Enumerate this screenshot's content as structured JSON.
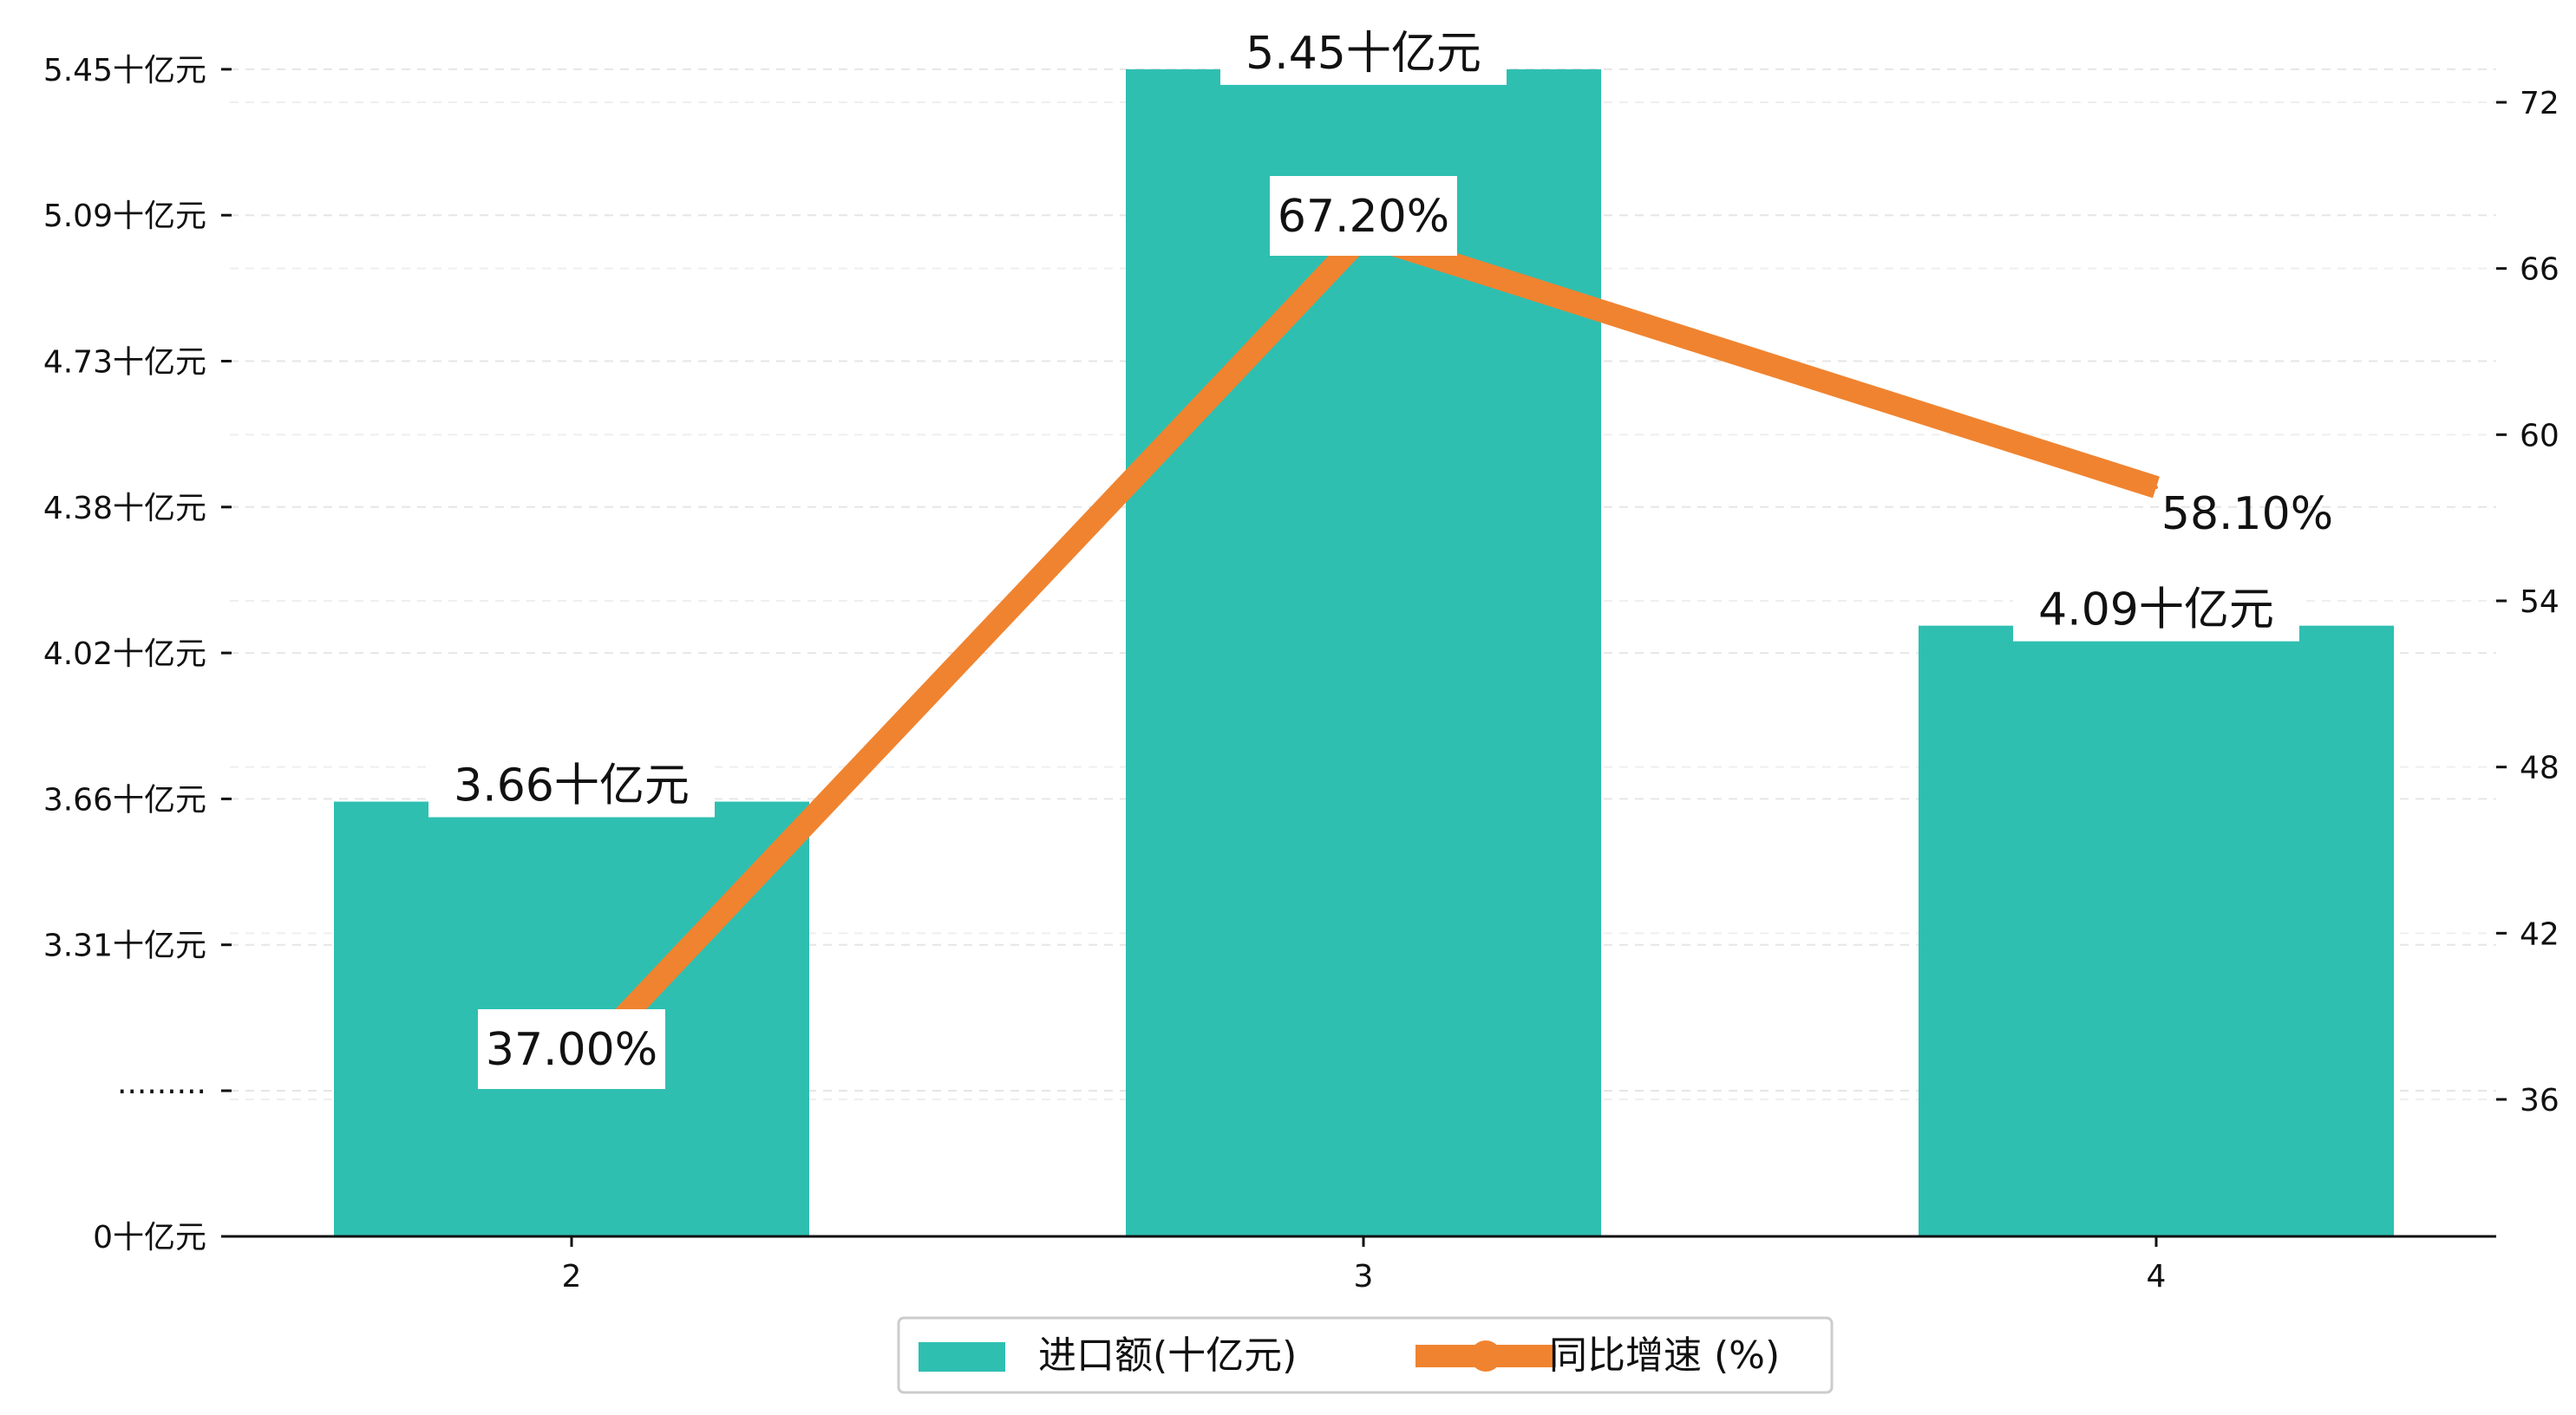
{
  "chart_data": {
    "type": "bar",
    "categories": [
      "2",
      "3",
      "4"
    ],
    "series": [
      {
        "name": "进口额(十亿元)",
        "type": "bar",
        "axis": "left",
        "values": [
          3.66,
          5.45,
          4.09
        ],
        "value_labels": [
          "3.66十亿元",
          "5.45十亿元",
          "4.09十亿元"
        ],
        "color": "#2EBFB1"
      },
      {
        "name": "同比增速 (%)",
        "type": "line",
        "axis": "right",
        "values": [
          37.0,
          67.2,
          58.1
        ],
        "value_labels": [
          "37.00%",
          "67.20%",
          "58.10%"
        ],
        "color": "#F0832F"
      }
    ],
    "left_axis": {
      "tick_labels": [
        "0十亿元",
        "·········",
        "3.31十亿元",
        "3.66十亿元",
        "4.02十亿元",
        "4.38十亿元",
        "4.73十亿元",
        "5.09十亿元",
        "5.45十亿元"
      ],
      "broken_axis": true
    },
    "right_axis": {
      "ylim": [
        31,
        73.2
      ],
      "ticks": [
        36,
        42,
        48,
        54,
        60,
        66,
        72
      ],
      "tick_labels": [
        "36",
        "42",
        "48",
        "54",
        "60",
        "66",
        "72"
      ]
    },
    "grid": "horizontal-dashed",
    "legend": {
      "position": "bottom-center",
      "entries": [
        "进口额(十亿元)",
        "同比增速 (%)"
      ]
    }
  }
}
